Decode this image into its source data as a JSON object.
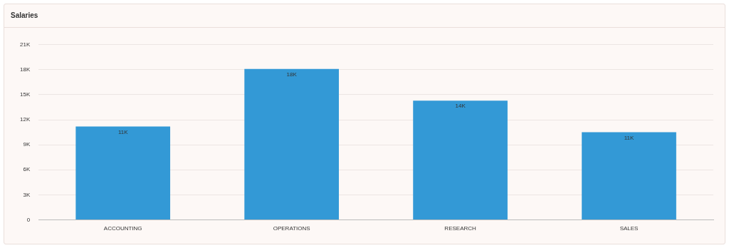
{
  "chart_data": {
    "type": "bar",
    "title": "Salaries",
    "categories": [
      "ACCOUNTING",
      "OPERATIONS",
      "RESEARCH",
      "SALES"
    ],
    "values": [
      11.2,
      18.1,
      14.3,
      10.5
    ],
    "color": "#3399d6",
    "value_labels": [
      "11K",
      "18K",
      "14K",
      "11K"
    ],
    "ylim": [
      0,
      21
    ],
    "yticks": [
      {
        "value": 0,
        "label": "0"
      },
      {
        "value": 3,
        "label": "3K"
      },
      {
        "value": 6,
        "label": "6K"
      },
      {
        "value": 9,
        "label": "9K"
      },
      {
        "value": 12,
        "label": "12K"
      },
      {
        "value": 15,
        "label": "15K"
      },
      {
        "value": 18,
        "label": "18K"
      },
      {
        "value": 21,
        "label": "21K"
      }
    ],
    "grid": "y",
    "legend": false
  }
}
